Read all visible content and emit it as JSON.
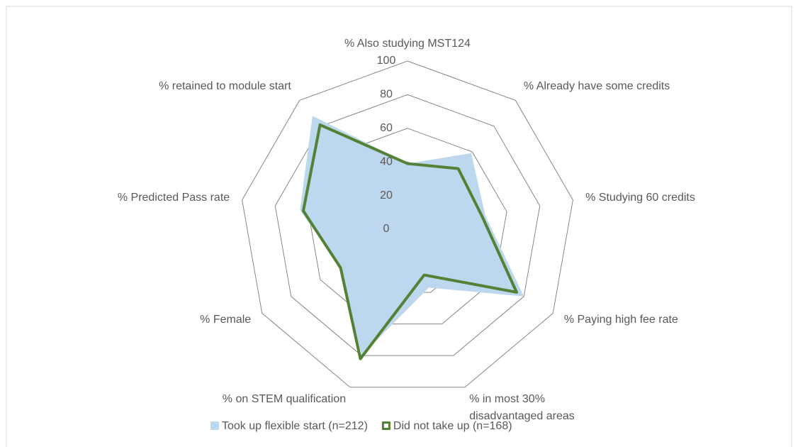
{
  "chart_data": {
    "type": "radar",
    "categories": [
      "% Also studying MST124",
      "% Already have some credits",
      "% Studying 60 credits",
      "% Paying high fee rate",
      "% in most 30% disadvantaged areas",
      "% on STEM qualification",
      "% Female",
      "%  Predicted Pass rate",
      "% retained to module start"
    ],
    "series": [
      {
        "name": "Took up flexible start (n=212)",
        "color": "#bdd7ee",
        "style": "area",
        "values": [
          39,
          59,
          47,
          80,
          37,
          80,
          46,
          65,
          88
        ]
      },
      {
        "name": "Did not take up (n=168)",
        "color": "#538135",
        "style": "line",
        "values": [
          39,
          47,
          45,
          75,
          29,
          82,
          46,
          63,
          81
        ]
      }
    ],
    "ylim": [
      0,
      100
    ],
    "yticks": [
      0,
      20,
      40,
      60,
      80,
      100
    ],
    "grid": true,
    "legend": "bottom"
  }
}
